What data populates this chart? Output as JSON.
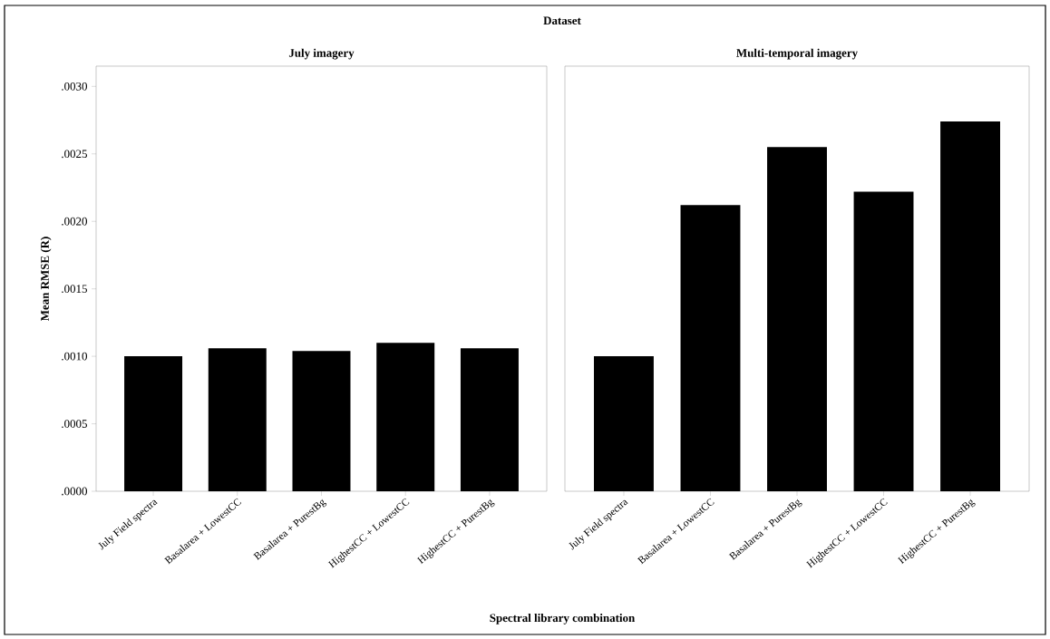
{
  "chart_data": [
    {
      "type": "bar",
      "title": "July imagery",
      "annotations": [
        "Dataset"
      ],
      "xlabel": "Spectral library combination",
      "ylabel": "Mean RMSE (R)",
      "categories": [
        "July Field spectra",
        "Basalarea + LowestCC",
        "Basalarea + PurestBg",
        "HighestCC + LowestCC",
        "HighestCC + PurestBg"
      ],
      "values": [
        0.001,
        0.00106,
        0.00104,
        0.0011,
        0.00106
      ],
      "color": "#000000",
      "ylim": [
        0,
        0.00315
      ],
      "yticks": [
        {
          "value": 0,
          "label": ".0000"
        },
        {
          "value": 0.0005,
          "label": ".0005"
        },
        {
          "value": 0.001,
          "label": ".0010"
        },
        {
          "value": 0.0015,
          "label": ".0015"
        },
        {
          "value": 0.002,
          "label": ".0020"
        },
        {
          "value": 0.0025,
          "label": ".0025"
        },
        {
          "value": 0.003,
          "label": ".0030"
        }
      ]
    },
    {
      "type": "bar",
      "title": "Multi-temporal imagery",
      "categories": [
        "July Field spectra",
        "Basalarea + LowestCC",
        "Basalarea + PurestBg",
        "HighestCC + LowestCC",
        "HighestCC + PurestBg"
      ],
      "values": [
        0.001,
        0.00212,
        0.00255,
        0.00222,
        0.00274
      ],
      "color": "#000000",
      "ylim": [
        0,
        0.00315
      ],
      "tick_labels": "x"
    }
  ]
}
